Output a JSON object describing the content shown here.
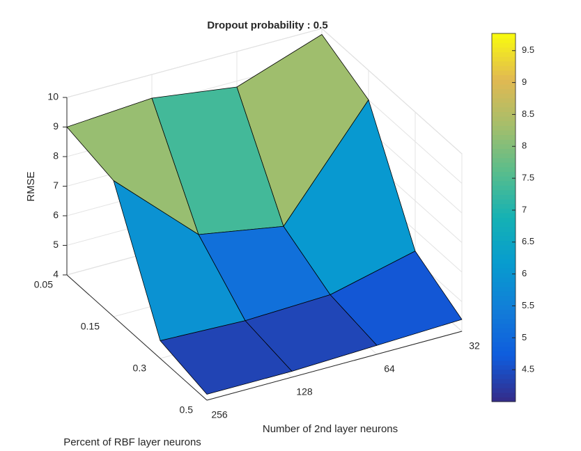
{
  "chart_data": {
    "type": "surface3d",
    "title": "Dropout probability : 0.5",
    "x_label": "Number of 2nd layer neurons",
    "y_label": "Percent of RBF layer neurons",
    "z_label": "RMSE",
    "x_categories": [
      "256",
      "128",
      "64",
      "32"
    ],
    "y_categories": [
      "0.05",
      "0.15",
      "0.3",
      "0.5"
    ],
    "z": [
      [
        9.0,
        9.2,
        8.8,
        9.8
      ],
      [
        8.6,
        6.0,
        5.5,
        9.0
      ],
      [
        4.6,
        4.5,
        4.6,
        5.3
      ],
      [
        4.2,
        4.2,
        4.3,
        4.4
      ]
    ],
    "zlim": [
      4,
      10
    ],
    "zticks": [
      4,
      5,
      6,
      7,
      8,
      9,
      10
    ],
    "colormap": "parula",
    "clim": [
      4.0,
      9.77
    ],
    "colorbar_ticks": [
      4.5,
      5,
      5.5,
      6,
      6.5,
      7,
      7.5,
      8,
      8.5,
      9,
      9.5
    ],
    "grid": true
  }
}
